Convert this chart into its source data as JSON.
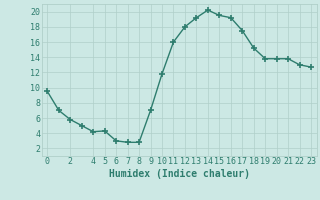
{
  "x": [
    0,
    1,
    2,
    3,
    4,
    5,
    6,
    7,
    8,
    9,
    10,
    11,
    12,
    13,
    14,
    15,
    16,
    17,
    18,
    19,
    20,
    21,
    22,
    23
  ],
  "y": [
    9.5,
    7.0,
    5.8,
    5.0,
    4.2,
    4.3,
    3.0,
    2.8,
    2.8,
    7.0,
    11.8,
    16.0,
    18.0,
    19.2,
    20.2,
    19.5,
    19.2,
    17.5,
    15.2,
    13.8,
    13.8,
    13.8,
    13.0,
    12.7
  ],
  "line_color": "#2e7d6e",
  "marker": "+",
  "marker_size": 4,
  "marker_linewidth": 1.2,
  "bg_color": "#cce8e4",
  "grid_color": "#b0cfc9",
  "xlabel": "Humidex (Indice chaleur)",
  "xlim": [
    -0.5,
    23.5
  ],
  "ylim": [
    1,
    21
  ],
  "xticks": [
    0,
    2,
    4,
    5,
    6,
    7,
    8,
    9,
    10,
    11,
    12,
    13,
    14,
    15,
    16,
    17,
    18,
    19,
    20,
    21,
    22,
    23
  ],
  "yticks": [
    2,
    4,
    6,
    8,
    10,
    12,
    14,
    16,
    18,
    20
  ],
  "xlabel_fontsize": 7.0,
  "tick_fontsize": 6.0,
  "linewidth": 1.0
}
